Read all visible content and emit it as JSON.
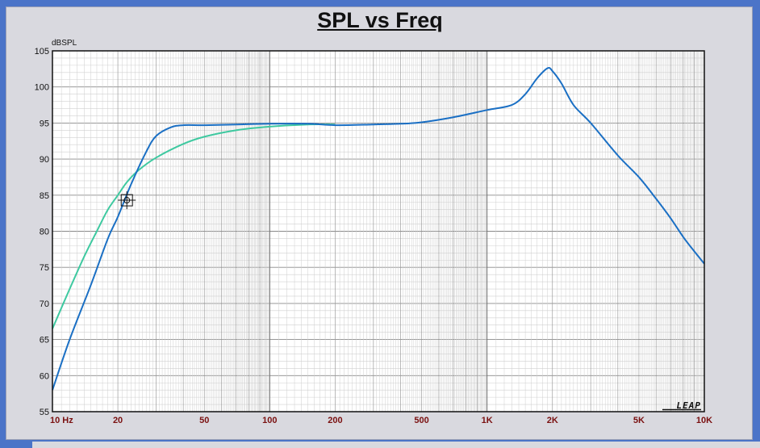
{
  "chart_data": {
    "type": "line",
    "title": "SPL vs Freq",
    "ylabel": "dBSPL",
    "xlabel": "",
    "xscale": "log",
    "xlim": [
      10,
      10000
    ],
    "ylim": [
      55,
      105
    ],
    "grid": true,
    "yticks": [
      "105",
      "100",
      "95",
      "90",
      "85",
      "80",
      "75",
      "70",
      "65",
      "60",
      "55"
    ],
    "yticks_values": [
      105,
      100,
      95,
      90,
      85,
      80,
      75,
      70,
      65,
      60,
      55
    ],
    "xticks": [
      {
        "value": 10,
        "label": "10 Hz"
      },
      {
        "value": 20,
        "label": "20"
      },
      {
        "value": 50,
        "label": "50"
      },
      {
        "value": 100,
        "label": "100"
      },
      {
        "value": 200,
        "label": "200"
      },
      {
        "value": 500,
        "label": "500"
      },
      {
        "value": 1000,
        "label": "1K"
      },
      {
        "value": 2000,
        "label": "2K"
      },
      {
        "value": 5000,
        "label": "5K"
      },
      {
        "value": 10000,
        "label": "10K"
      }
    ],
    "series": [
      {
        "color": "#1a6fc4",
        "points": [
          [
            10,
            58
          ],
          [
            12,
            65
          ],
          [
            15,
            72.5
          ],
          [
            18,
            79
          ],
          [
            20,
            82
          ],
          [
            23,
            86.5
          ],
          [
            27,
            91
          ],
          [
            30,
            93.2
          ],
          [
            35,
            94.4
          ],
          [
            40,
            94.7
          ],
          [
            50,
            94.7
          ],
          [
            70,
            94.8
          ],
          [
            100,
            94.9
          ],
          [
            150,
            94.9
          ],
          [
            200,
            94.7
          ],
          [
            300,
            94.8
          ],
          [
            400,
            94.9
          ],
          [
            500,
            95.1
          ],
          [
            700,
            95.8
          ],
          [
            1000,
            96.8
          ],
          [
            1300,
            97.5
          ],
          [
            1500,
            99
          ],
          [
            1700,
            101.2
          ],
          [
            1900,
            102.6
          ],
          [
            2000,
            102.2
          ],
          [
            2200,
            100.5
          ],
          [
            2500,
            97.5
          ],
          [
            3000,
            95
          ],
          [
            4000,
            90.5
          ],
          [
            5000,
            87.5
          ],
          [
            6000,
            84.5
          ],
          [
            7000,
            81.8
          ],
          [
            8000,
            79.2
          ],
          [
            9000,
            77.2
          ],
          [
            10000,
            75.5
          ]
        ]
      },
      {
        "color": "#3ec9a0",
        "points": [
          [
            10,
            66.5
          ],
          [
            12,
            72
          ],
          [
            14,
            76.5
          ],
          [
            16,
            80
          ],
          [
            18,
            83
          ],
          [
            20,
            85
          ],
          [
            22,
            86.8
          ],
          [
            25,
            88.5
          ],
          [
            30,
            90.2
          ],
          [
            40,
            92.1
          ],
          [
            50,
            93.1
          ],
          [
            70,
            94
          ],
          [
            100,
            94.5
          ],
          [
            150,
            94.8
          ],
          [
            200,
            94.8
          ]
        ]
      }
    ],
    "marker": {
      "x": 22,
      "y": 84.3
    },
    "watermark": "LEAP"
  }
}
